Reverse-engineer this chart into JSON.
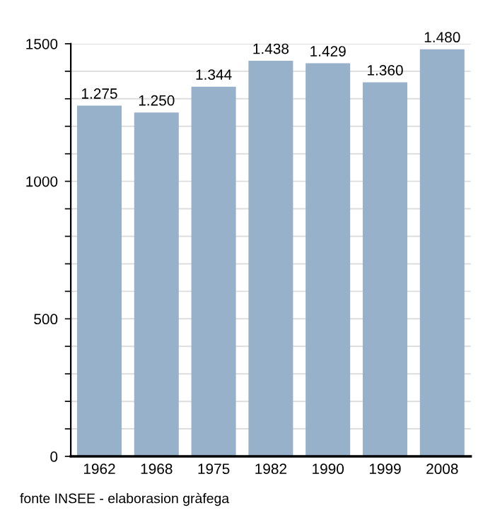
{
  "chart_data": {
    "type": "bar",
    "categories": [
      "1962",
      "1968",
      "1975",
      "1982",
      "1990",
      "1999",
      "2008"
    ],
    "values": [
      1275,
      1250,
      1344,
      1438,
      1429,
      1360,
      1480
    ],
    "value_labels": [
      "1.275",
      "1.250",
      "1.344",
      "1.438",
      "1.429",
      "1.360",
      "1.480"
    ],
    "color": "#97b1cb",
    "ylim": [
      0,
      1500
    ],
    "yticks": [
      0,
      {
        "value": 100,
        "label": null
      },
      {
        "value": 200,
        "label": null
      },
      {
        "value": 300,
        "label": null
      },
      {
        "value": 400,
        "label": null
      },
      500,
      {
        "value": 600,
        "label": null
      },
      {
        "value": 700,
        "label": null
      },
      {
        "value": 800,
        "label": null
      },
      {
        "value": 900,
        "label": null
      },
      1000,
      {
        "value": 1100,
        "label": null
      },
      {
        "value": 1200,
        "label": null
      },
      {
        "value": 1300,
        "label": null
      },
      {
        "value": 1400,
        "label": null
      },
      1500
    ],
    "grid": "y",
    "annotations": [
      "fonte INSEE - elaborasion gràfega"
    ]
  }
}
